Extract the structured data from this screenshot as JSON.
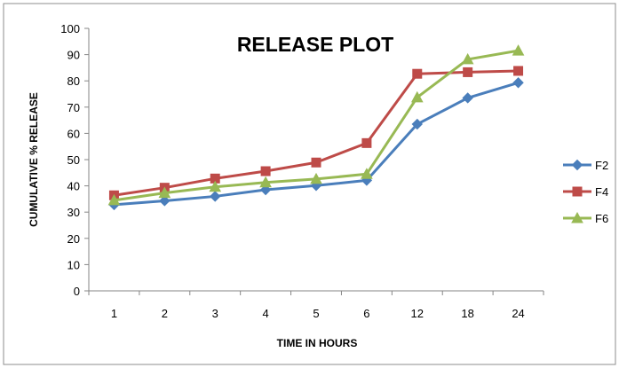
{
  "chart_data": {
    "type": "line",
    "title": "RELEASE PLOT",
    "xlabel": "TIME IN HOURS",
    "ylabel": "CUMULATIVE % RELEASE",
    "categories": [
      "1",
      "2",
      "3",
      "4",
      "5",
      "6",
      "12",
      "18",
      "24"
    ],
    "ylim": [
      0,
      100
    ],
    "yticks": [
      0,
      10,
      20,
      30,
      40,
      50,
      60,
      70,
      80,
      90,
      100
    ],
    "grid": false,
    "legend_position": "right",
    "series": [
      {
        "name": "F2",
        "color": "#4A7EBB",
        "marker": "diamond",
        "values": [
          32.8,
          34.3,
          36.0,
          38.5,
          40.1,
          42.1,
          63.5,
          73.5,
          79.3
        ]
      },
      {
        "name": "F4",
        "color": "#BE4B48",
        "marker": "square",
        "values": [
          36.4,
          39.3,
          42.8,
          45.6,
          48.9,
          56.3,
          82.7,
          83.3,
          83.8
        ]
      },
      {
        "name": "F6",
        "color": "#98B954",
        "marker": "triangle",
        "values": [
          34.5,
          37.3,
          39.6,
          41.3,
          42.6,
          44.5,
          73.7,
          88.2,
          91.5
        ]
      }
    ]
  }
}
